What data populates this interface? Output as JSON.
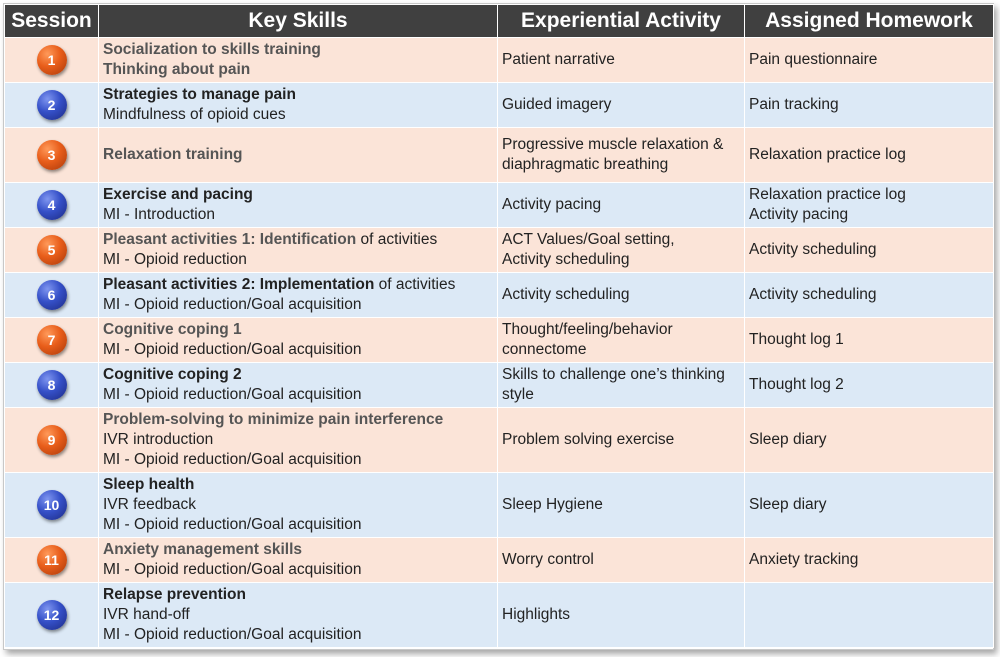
{
  "headers": [
    "Session",
    "Key Skills",
    "Experiential Activity",
    "Assigned Homework"
  ],
  "colors": {
    "odd_row": "#fbe4d8",
    "even_row": "#dce9f6",
    "header": "#404040",
    "orange_badge": "#e85d1a",
    "blue_badge": "#3550c8"
  },
  "rows": [
    {
      "num": "1",
      "badge": "orange",
      "skills": [
        {
          "bold": "Socialization to skills training",
          "rest": ""
        },
        {
          "bold": "Thinking about pain",
          "rest": ""
        }
      ],
      "activity": [
        "Patient narrative"
      ],
      "homework": [
        "Pain questionnaire"
      ]
    },
    {
      "num": "2",
      "badge": "blue",
      "skills": [
        {
          "bold": "Strategies to manage pain",
          "rest": ""
        },
        {
          "bold": "",
          "rest": "Mindfulness of opioid cues"
        }
      ],
      "activity": [
        "Guided imagery"
      ],
      "homework": [
        "Pain tracking"
      ]
    },
    {
      "num": "3",
      "badge": "orange",
      "skills": [
        {
          "bold": "Relaxation training",
          "rest": ""
        }
      ],
      "activity": [
        "Progressive muscle relaxation &",
        "diaphragmatic breathing"
      ],
      "homework": [
        "Relaxation practice log"
      ]
    },
    {
      "num": "4",
      "badge": "blue",
      "skills": [
        {
          "bold": "Exercise and pacing",
          "rest": ""
        },
        {
          "bold": "",
          "rest": "MI - Introduction"
        }
      ],
      "activity": [
        "Activity pacing"
      ],
      "homework": [
        "Relaxation practice log",
        " Activity pacing"
      ]
    },
    {
      "num": "5",
      "badge": "orange",
      "skills": [
        {
          "bold": "Pleasant activities 1: Identification",
          "rest": " of activities"
        },
        {
          "bold": "",
          "rest": "MI - Opioid reduction"
        }
      ],
      "activity": [
        "ACT Values/Goal setting,",
        "Activity scheduling"
      ],
      "homework": [
        "Activity scheduling"
      ]
    },
    {
      "num": "6",
      "badge": "blue",
      "skills": [
        {
          "bold": "Pleasant activities 2: Implementation",
          "rest": " of activities"
        },
        {
          "bold": "",
          "rest": "MI - Opioid reduction/Goal acquisition"
        }
      ],
      "activity": [
        "Activity scheduling"
      ],
      "homework": [
        "Activity scheduling"
      ]
    },
    {
      "num": "7",
      "badge": "orange",
      "skills": [
        {
          "bold": "Cognitive coping 1",
          "rest": ""
        },
        {
          "bold": "",
          "rest": " MI - Opioid reduction/Goal acquisition"
        }
      ],
      "activity": [
        "Thought/feeling/behavior",
        "connectome"
      ],
      "homework": [
        "Thought log 1"
      ]
    },
    {
      "num": "8",
      "badge": "blue",
      "skills": [
        {
          "bold": "Cognitive coping 2",
          "rest": ""
        },
        {
          "bold": "",
          "rest": " MI - Opioid reduction/Goal acquisition"
        }
      ],
      "activity": [
        "Skills to challenge one’s thinking",
        "style"
      ],
      "homework": [
        "Thought log 2"
      ]
    },
    {
      "num": "9",
      "badge": "orange",
      "skills": [
        {
          "bold": "Problem-solving to minimize pain interference",
          "rest": ""
        },
        {
          "bold": "",
          "rest": "IVR introduction"
        },
        {
          "bold": "",
          "rest": "MI - Opioid reduction/Goal acquisition"
        }
      ],
      "activity": [
        "Problem solving exercise"
      ],
      "homework": [
        "Sleep diary"
      ]
    },
    {
      "num": "10",
      "badge": "blue",
      "skills": [
        {
          "bold": "Sleep health",
          "rest": ""
        },
        {
          "bold": "",
          "rest": "IVR feedback"
        },
        {
          "bold": "",
          "rest": "MI - Opioid reduction/Goal acquisition"
        }
      ],
      "activity": [
        "Sleep Hygiene"
      ],
      "homework": [
        "Sleep diary"
      ]
    },
    {
      "num": "11",
      "badge": "orange",
      "skills": [
        {
          "bold": "Anxiety management skills",
          "rest": ""
        },
        {
          "bold": "",
          "rest": "MI - Opioid reduction/Goal acquisition"
        }
      ],
      "activity": [
        "Worry control"
      ],
      "homework": [
        "Anxiety tracking"
      ]
    },
    {
      "num": "12",
      "badge": "blue",
      "skills": [
        {
          "bold": "Relapse prevention",
          "rest": ""
        },
        {
          "bold": "",
          "rest": "IVR hand-off"
        },
        {
          "bold": "",
          "rest": "MI - Opioid reduction/Goal acquisition"
        }
      ],
      "activity": [
        "Highlights"
      ],
      "homework": []
    }
  ]
}
